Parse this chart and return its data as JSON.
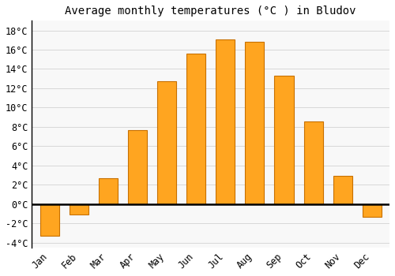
{
  "title": "Average monthly temperatures (°C ) in Bludov",
  "months": [
    "Jan",
    "Feb",
    "Mar",
    "Apr",
    "May",
    "Jun",
    "Jul",
    "Aug",
    "Sep",
    "Oct",
    "Nov",
    "Dec"
  ],
  "values": [
    -3.3,
    -1.1,
    2.7,
    7.7,
    12.7,
    15.6,
    17.1,
    16.8,
    13.3,
    8.6,
    2.9,
    -1.3
  ],
  "bar_color_main": "#FFA520",
  "bar_color_edge": "#C87000",
  "ylim": [
    -4.5,
    19
  ],
  "yticks": [
    -4,
    -2,
    0,
    2,
    4,
    6,
    8,
    10,
    12,
    14,
    16,
    18
  ],
  "grid_color": "#d8d8d8",
  "bg_color": "#ffffff",
  "plot_bg_color": "#f8f8f8",
  "title_fontsize": 10,
  "tick_fontsize": 8.5,
  "bar_width": 0.65
}
